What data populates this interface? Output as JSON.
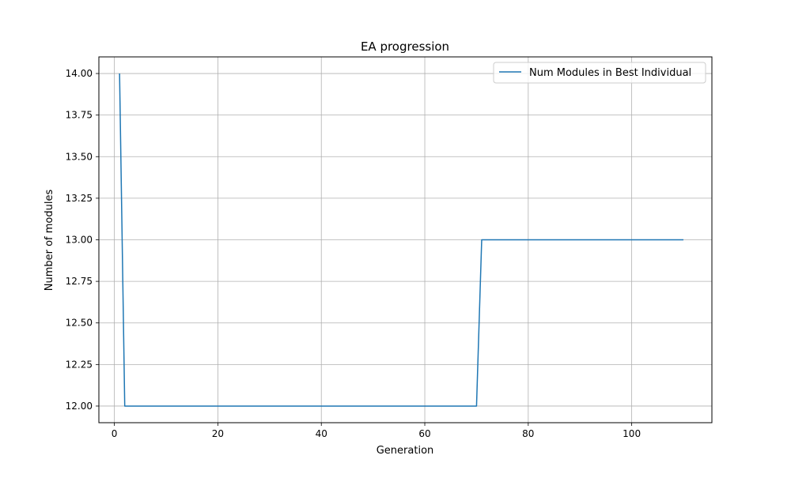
{
  "chart_data": {
    "type": "line",
    "title": "EA progression",
    "xlabel": "Generation",
    "ylabel": "Number of modules",
    "xlim": [
      -3,
      115.5
    ],
    "ylim": [
      11.9,
      14.1
    ],
    "xticks": [
      0,
      20,
      40,
      60,
      80,
      100
    ],
    "xtick_labels": [
      "0",
      "20",
      "40",
      "60",
      "80",
      "100"
    ],
    "yticks": [
      12.0,
      12.25,
      12.5,
      12.75,
      13.0,
      13.25,
      13.5,
      13.75,
      14.0
    ],
    "ytick_labels": [
      "12.00",
      "12.25",
      "12.50",
      "12.75",
      "13.00",
      "13.25",
      "13.50",
      "13.75",
      "14.00"
    ],
    "grid": true,
    "legend_position": "upper right",
    "series": [
      {
        "name": "Num Modules in Best Individual",
        "color": "#1f77b4",
        "points": [
          [
            1,
            14
          ],
          [
            2,
            12
          ],
          [
            70,
            12
          ],
          [
            71,
            13
          ],
          [
            110,
            13
          ]
        ]
      }
    ]
  }
}
